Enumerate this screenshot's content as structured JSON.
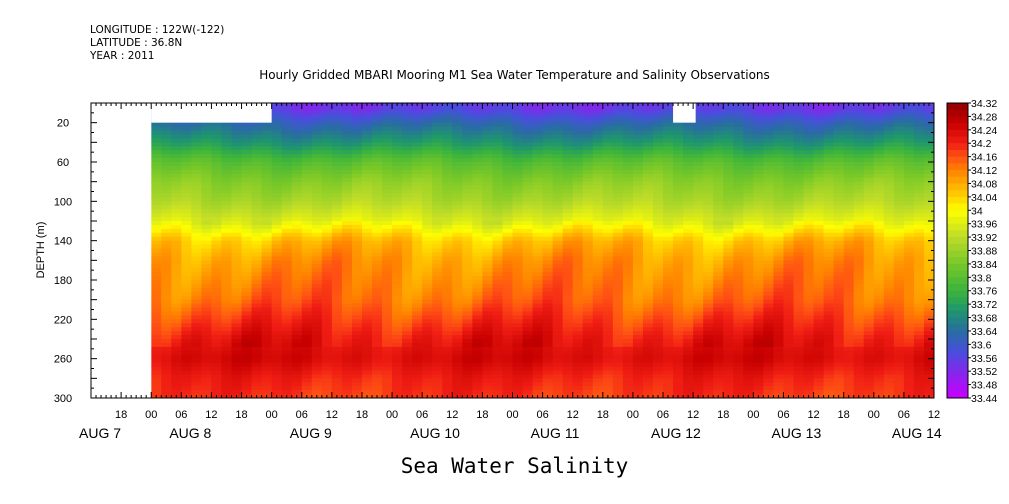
{
  "meta": {
    "longitude": "LONGITUDE : 122W(-122)",
    "latitude": "LATITUDE : 36.8N",
    "year": "YEAR : 2011"
  },
  "chart_data": {
    "type": "heatmap",
    "title": "Hourly Gridded MBARI Mooring M1 Sea Water Temperature and Salinity Observations",
    "variable_title": "Sea Water Salinity",
    "ylabel": "DEPTH (m)",
    "ylim": [
      0,
      300
    ],
    "y_inverted": true,
    "y_ticks": [
      20,
      60,
      100,
      140,
      180,
      220,
      260,
      300
    ],
    "x_hours_range": [
      -12,
      156
    ],
    "x_hour_ticks": [
      {
        "h": -6,
        "label": "18"
      },
      {
        "h": 0,
        "label": "00"
      },
      {
        "h": 6,
        "label": "06"
      },
      {
        "h": 12,
        "label": "12"
      },
      {
        "h": 18,
        "label": "18"
      },
      {
        "h": 24,
        "label": "00"
      },
      {
        "h": 30,
        "label": "06"
      },
      {
        "h": 36,
        "label": "12"
      },
      {
        "h": 42,
        "label": "18"
      },
      {
        "h": 48,
        "label": "00"
      },
      {
        "h": 54,
        "label": "06"
      },
      {
        "h": 60,
        "label": "12"
      },
      {
        "h": 66,
        "label": "18"
      },
      {
        "h": 72,
        "label": "00"
      },
      {
        "h": 78,
        "label": "06"
      },
      {
        "h": 84,
        "label": "12"
      },
      {
        "h": 90,
        "label": "18"
      },
      {
        "h": 96,
        "label": "00"
      },
      {
        "h": 102,
        "label": "06"
      },
      {
        "h": 108,
        "label": "12"
      },
      {
        "h": 114,
        "label": "18"
      },
      {
        "h": 120,
        "label": "00"
      },
      {
        "h": 126,
        "label": "06"
      },
      {
        "h": 132,
        "label": "12"
      },
      {
        "h": 138,
        "label": "18"
      },
      {
        "h": 144,
        "label": "00"
      },
      {
        "h": 150,
        "label": "06"
      },
      {
        "h": 156,
        "label": "12"
      }
    ],
    "date_labels": [
      {
        "h": -12,
        "label": "AUG 7"
      },
      {
        "h": 6,
        "label": "AUG 8"
      },
      {
        "h": 30,
        "label": "AUG 9"
      },
      {
        "h": 54,
        "label": "AUG 10"
      },
      {
        "h": 78,
        "label": "AUG 11"
      },
      {
        "h": 102,
        "label": "AUG 12"
      },
      {
        "h": 126,
        "label": "AUG 13"
      },
      {
        "h": 150,
        "label": "AUG 14"
      }
    ],
    "colorbar": {
      "min": 33.44,
      "max": 34.32,
      "labels": [
        "34.32",
        "34.28",
        "34.24",
        "34.2",
        "34.16",
        "34.12",
        "34.08",
        "34.04",
        "34",
        "33.96",
        "33.92",
        "33.88",
        "33.84",
        "33.8",
        "33.76",
        "33.72",
        "33.68",
        "33.64",
        "33.6",
        "33.56",
        "33.52",
        "33.48",
        "33.44"
      ]
    },
    "profile": [
      {
        "depth": 6,
        "value": 33.55
      },
      {
        "depth": 20,
        "value": 33.62
      },
      {
        "depth": 40,
        "value": 33.7
      },
      {
        "depth": 60,
        "value": 33.8
      },
      {
        "depth": 80,
        "value": 33.86
      },
      {
        "depth": 100,
        "value": 33.9
      },
      {
        "depth": 120,
        "value": 33.96
      },
      {
        "depth": 140,
        "value": 34.06
      },
      {
        "depth": 160,
        "value": 34.1
      },
      {
        "depth": 180,
        "value": 34.12
      },
      {
        "depth": 200,
        "value": 34.14
      },
      {
        "depth": 220,
        "value": 34.18
      },
      {
        "depth": 240,
        "value": 34.22
      },
      {
        "depth": 260,
        "value": 34.24
      },
      {
        "depth": 280,
        "value": 34.2
      },
      {
        "depth": 300,
        "value": 34.18
      }
    ],
    "missing": [
      {
        "h_from": -12,
        "h_to": 0,
        "depth_from": 0,
        "depth_to": 300
      },
      {
        "h_from": 0,
        "h_to": 24,
        "depth_from": 0,
        "depth_to": 20
      },
      {
        "h_from": 104,
        "h_to": 108.5,
        "depth_from": 0,
        "depth_to": 20
      }
    ]
  }
}
